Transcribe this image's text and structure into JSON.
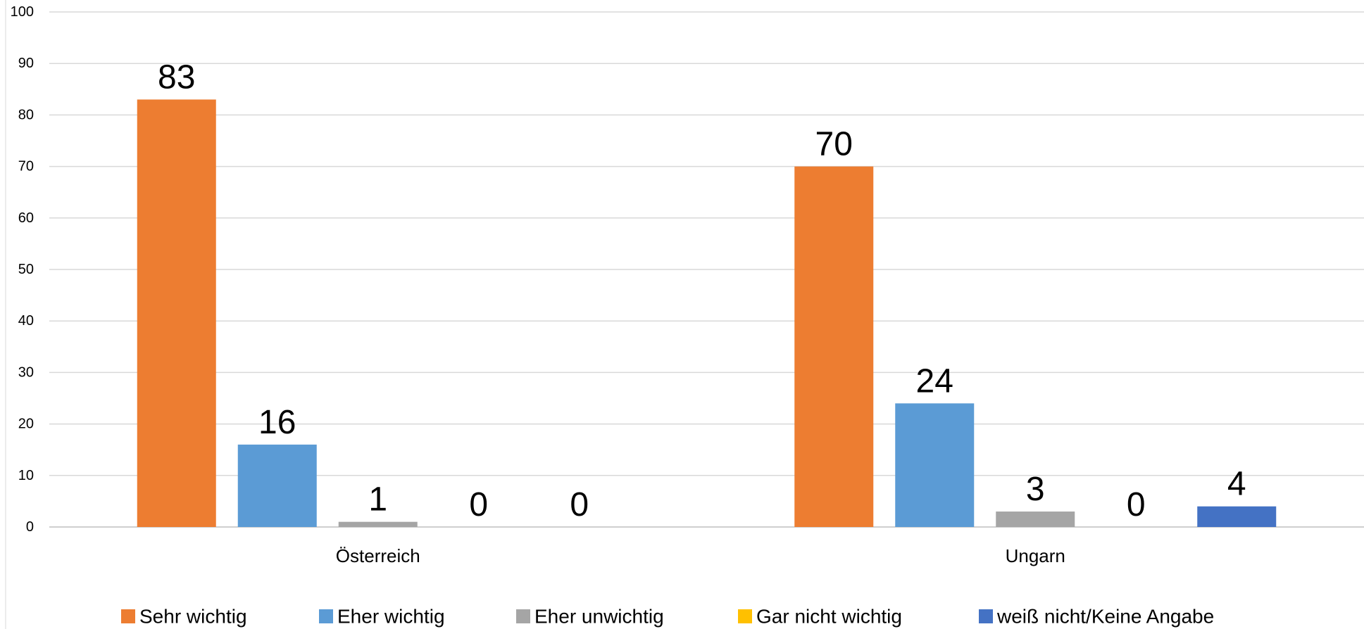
{
  "chart_data": {
    "type": "bar",
    "categories": [
      "Österreich",
      "Ungarn"
    ],
    "series": [
      {
        "name": "Sehr wichtig",
        "values": [
          83,
          70
        ],
        "color": "#ED7D31"
      },
      {
        "name": "Eher wichtig",
        "values": [
          16,
          24
        ],
        "color": "#5B9BD5"
      },
      {
        "name": "Eher unwichtig",
        "values": [
          1,
          3
        ],
        "color": "#A5A5A5"
      },
      {
        "name": "Gar nicht wichtig",
        "values": [
          0,
          0
        ],
        "color": "#FFC000"
      },
      {
        "name": "weiß nicht/Keine Angabe",
        "values": [
          0,
          4
        ],
        "color": "#4472C4"
      }
    ],
    "data_labels": [
      [
        "83",
        "70"
      ],
      [
        "16",
        "24"
      ],
      [
        "1",
        "3"
      ],
      [
        "0",
        "0"
      ],
      [
        "0",
        "4"
      ]
    ],
    "y_ticks": [
      "0",
      "10",
      "20",
      "30",
      "40",
      "50",
      "60",
      "70",
      "80",
      "90",
      "100"
    ],
    "ylim": [
      0,
      100
    ],
    "grid": true,
    "legend": "bottom"
  }
}
